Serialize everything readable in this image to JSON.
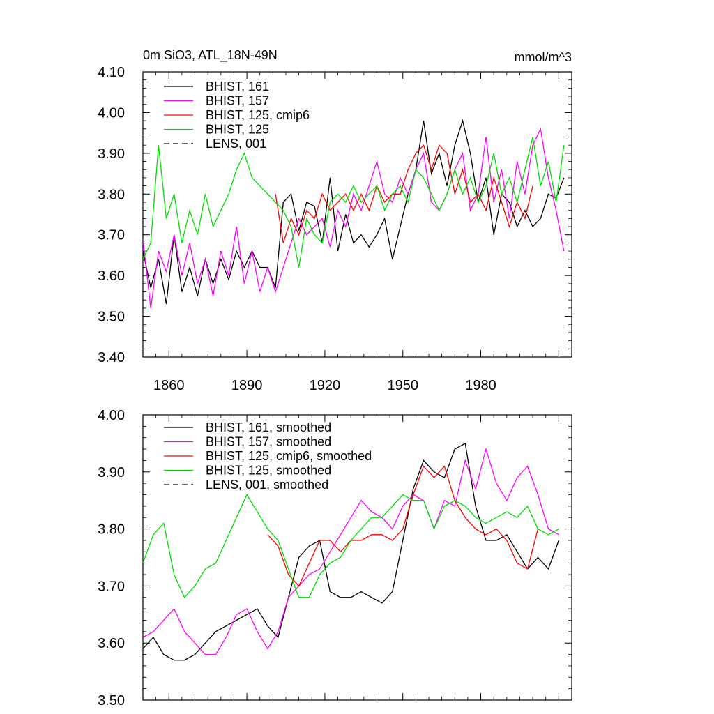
{
  "chart_data": [
    {
      "type": "line",
      "title": "0m SiO3, ATL_18N-49N",
      "units": "mmol/m^3",
      "xlim": [
        1850,
        2015
      ],
      "ylim": [
        3.4,
        4.1
      ],
      "yticks": [
        "3.40",
        "3.50",
        "3.60",
        "3.70",
        "3.80",
        "3.90",
        "4.00",
        "4.10"
      ],
      "xticks": [
        "1860",
        "1890",
        "1920",
        "1950",
        "1980"
      ],
      "legend_position": "top-left",
      "grid": false,
      "series": [
        {
          "name": "BHIST, 161",
          "color": "#000000",
          "dash": "solid",
          "x": [
            1850,
            1853,
            1856,
            1859,
            1862,
            1865,
            1868,
            1871,
            1874,
            1877,
            1880,
            1883,
            1886,
            1889,
            1892,
            1895,
            1898,
            1901,
            1904,
            1907,
            1910,
            1913,
            1916,
            1919,
            1922,
            1925,
            1928,
            1931,
            1934,
            1937,
            1940,
            1943,
            1946,
            1949,
            1952,
            1955,
            1958,
            1961,
            1964,
            1967,
            1970,
            1973,
            1976,
            1979,
            1982,
            1985,
            1988,
            1991,
            1994,
            1997,
            2000,
            2003,
            2006,
            2009,
            2012
          ],
          "y": [
            3.66,
            3.57,
            3.64,
            3.53,
            3.7,
            3.56,
            3.62,
            3.55,
            3.64,
            3.58,
            3.64,
            3.59,
            3.66,
            3.62,
            3.66,
            3.62,
            3.62,
            3.57,
            3.78,
            3.8,
            3.71,
            3.78,
            3.77,
            3.68,
            3.84,
            3.66,
            3.75,
            3.68,
            3.7,
            3.67,
            3.7,
            3.74,
            3.64,
            3.72,
            3.8,
            3.86,
            3.98,
            3.85,
            3.9,
            3.82,
            3.92,
            3.98,
            3.9,
            3.78,
            3.84,
            3.7,
            3.8,
            3.78,
            3.72,
            3.76,
            3.72,
            3.74,
            3.8,
            3.79,
            3.84
          ]
        },
        {
          "name": "BHIST, 157",
          "color": "#ff00ff",
          "dash": "solid",
          "x": [
            1850,
            1853,
            1856,
            1859,
            1862,
            1865,
            1868,
            1871,
            1874,
            1877,
            1880,
            1883,
            1886,
            1889,
            1892,
            1895,
            1898,
            1901,
            1904,
            1907,
            1910,
            1913,
            1916,
            1919,
            1922,
            1925,
            1928,
            1931,
            1934,
            1937,
            1940,
            1943,
            1946,
            1949,
            1952,
            1955,
            1958,
            1961,
            1964,
            1967,
            1970,
            1973,
            1976,
            1979,
            1982,
            1985,
            1988,
            1991,
            1994,
            1997,
            2000,
            2003,
            2006,
            2009,
            2012
          ],
          "y": [
            3.69,
            3.52,
            3.66,
            3.61,
            3.7,
            3.6,
            3.68,
            3.58,
            3.64,
            3.55,
            3.66,
            3.6,
            3.72,
            3.58,
            3.66,
            3.56,
            3.62,
            3.56,
            3.62,
            3.68,
            3.74,
            3.7,
            3.72,
            3.74,
            3.67,
            3.76,
            3.72,
            3.8,
            3.76,
            3.82,
            3.88,
            3.8,
            3.78,
            3.84,
            3.8,
            3.86,
            3.9,
            3.78,
            3.76,
            3.8,
            3.86,
            3.9,
            3.76,
            3.8,
            3.94,
            3.78,
            3.86,
            3.74,
            3.88,
            3.8,
            3.92,
            3.96,
            3.84,
            3.76,
            3.66
          ]
        },
        {
          "name": "BHIST, 125, cmip6",
          "color": "#ff0000",
          "dash": "solid",
          "x": [
            1901,
            1904,
            1907,
            1910,
            1913,
            1916,
            1919,
            1922,
            1925,
            1928,
            1931,
            1934,
            1937,
            1940,
            1943,
            1946,
            1949,
            1952,
            1955,
            1958,
            1961,
            1964,
            1967,
            1970,
            1973,
            1976,
            1979,
            1982,
            1985,
            1988,
            1991,
            1994,
            1997,
            2000
          ],
          "y": [
            3.8,
            3.68,
            3.74,
            3.7,
            3.76,
            3.74,
            3.8,
            3.76,
            3.78,
            3.8,
            3.76,
            3.8,
            3.76,
            3.82,
            3.78,
            3.8,
            3.8,
            3.86,
            3.9,
            3.92,
            3.86,
            3.92,
            3.9,
            3.8,
            3.86,
            3.78,
            3.8,
            3.76,
            3.84,
            3.78,
            3.72,
            3.78,
            3.74,
            3.82
          ]
        },
        {
          "name": "BHIST, 125",
          "color": "#00dd00",
          "dash": "solid",
          "x": [
            1850,
            1853,
            1856,
            1859,
            1862,
            1865,
            1868,
            1871,
            1874,
            1877,
            1880,
            1883,
            1886,
            1889,
            1892,
            1895,
            1898,
            1901,
            1904,
            1907,
            1910,
            1913,
            1916,
            1919,
            1922,
            1925,
            1928,
            1931,
            1934,
            1937,
            1940,
            1943,
            1946,
            1949,
            1952,
            1955,
            1958,
            1961,
            1964,
            1967,
            1970,
            1973,
            1976,
            1979,
            1982,
            1985,
            1988,
            1991,
            1994,
            1997,
            2000,
            2003,
            2006,
            2009,
            2012
          ],
          "y": [
            3.64,
            3.68,
            3.92,
            3.74,
            3.8,
            3.68,
            3.76,
            3.7,
            3.8,
            3.72,
            3.76,
            3.8,
            3.86,
            3.9,
            3.84,
            3.82,
            3.8,
            3.78,
            3.76,
            3.72,
            3.62,
            3.74,
            3.7,
            3.68,
            3.78,
            3.8,
            3.78,
            3.82,
            3.78,
            3.8,
            3.82,
            3.76,
            3.8,
            3.82,
            3.78,
            3.86,
            3.84,
            3.8,
            3.76,
            3.8,
            3.86,
            3.8,
            3.84,
            3.78,
            3.82,
            3.9,
            3.8,
            3.84,
            3.78,
            3.86,
            3.94,
            3.82,
            3.88,
            3.78,
            3.92
          ]
        },
        {
          "name": "LENS, 001",
          "color": "#000000",
          "dash": "dashed",
          "x": [],
          "y": []
        }
      ]
    },
    {
      "type": "line",
      "xlim": [
        1850,
        2015
      ],
      "ylim": [
        3.5,
        4.0
      ],
      "yticks": [
        "3.50",
        "3.60",
        "3.70",
        "3.80",
        "3.90",
        "4.00"
      ],
      "legend_position": "top-left",
      "grid": false,
      "series": [
        {
          "name": "BHIST, 161, smoothed",
          "color": "#000000",
          "dash": "solid",
          "x": [
            1850,
            1854,
            1858,
            1862,
            1866,
            1870,
            1874,
            1878,
            1882,
            1886,
            1890,
            1894,
            1898,
            1902,
            1906,
            1910,
            1914,
            1918,
            1922,
            1926,
            1930,
            1934,
            1938,
            1942,
            1946,
            1950,
            1954,
            1958,
            1962,
            1966,
            1970,
            1974,
            1978,
            1982,
            1986,
            1990,
            1994,
            1998,
            2002,
            2006,
            2010
          ],
          "y": [
            3.59,
            3.61,
            3.58,
            3.57,
            3.57,
            3.58,
            3.6,
            3.62,
            3.63,
            3.64,
            3.65,
            3.66,
            3.63,
            3.61,
            3.68,
            3.75,
            3.77,
            3.78,
            3.69,
            3.68,
            3.68,
            3.69,
            3.68,
            3.67,
            3.69,
            3.78,
            3.87,
            3.92,
            3.9,
            3.89,
            3.94,
            3.95,
            3.84,
            3.78,
            3.78,
            3.79,
            3.76,
            3.73,
            3.75,
            3.73,
            3.78
          ]
        },
        {
          "name": "BHIST, 157, smoothed",
          "color": "#ff00ff",
          "dash": "solid",
          "x": [
            1850,
            1854,
            1858,
            1862,
            1866,
            1870,
            1874,
            1878,
            1882,
            1886,
            1890,
            1894,
            1898,
            1902,
            1906,
            1910,
            1914,
            1918,
            1922,
            1926,
            1930,
            1934,
            1938,
            1942,
            1946,
            1950,
            1954,
            1958,
            1962,
            1966,
            1970,
            1974,
            1978,
            1982,
            1986,
            1990,
            1994,
            1998,
            2002,
            2006,
            2010
          ],
          "y": [
            3.61,
            3.62,
            3.64,
            3.66,
            3.62,
            3.6,
            3.58,
            3.58,
            3.61,
            3.65,
            3.66,
            3.62,
            3.59,
            3.62,
            3.68,
            3.7,
            3.72,
            3.73,
            3.76,
            3.79,
            3.82,
            3.85,
            3.83,
            3.82,
            3.8,
            3.84,
            3.86,
            3.85,
            3.8,
            3.85,
            3.84,
            3.92,
            3.87,
            3.94,
            3.88,
            3.85,
            3.89,
            3.91,
            3.86,
            3.8,
            3.79
          ]
        },
        {
          "name": "BHIST, 125, cmip6, smoothed",
          "color": "#ff0000",
          "dash": "solid",
          "x": [
            1898,
            1902,
            1906,
            1910,
            1914,
            1918,
            1922,
            1926,
            1930,
            1934,
            1938,
            1942,
            1946,
            1950,
            1954,
            1958,
            1962,
            1966,
            1970,
            1974,
            1978,
            1982,
            1986,
            1990,
            1994,
            1998,
            2002
          ],
          "y": [
            3.79,
            3.77,
            3.72,
            3.7,
            3.74,
            3.78,
            3.78,
            3.76,
            3.78,
            3.78,
            3.79,
            3.79,
            3.78,
            3.8,
            3.86,
            3.91,
            3.89,
            3.91,
            3.85,
            3.82,
            3.8,
            3.79,
            3.8,
            3.78,
            3.74,
            3.73,
            3.8
          ]
        },
        {
          "name": "BHIST, 125, smoothed",
          "color": "#00dd00",
          "dash": "solid",
          "x": [
            1850,
            1854,
            1858,
            1862,
            1866,
            1870,
            1874,
            1878,
            1882,
            1886,
            1890,
            1894,
            1898,
            1902,
            1906,
            1910,
            1914,
            1918,
            1922,
            1926,
            1930,
            1934,
            1938,
            1942,
            1946,
            1950,
            1954,
            1958,
            1962,
            1966,
            1970,
            1974,
            1978,
            1982,
            1986,
            1990,
            1994,
            1998,
            2002,
            2006,
            2010
          ],
          "y": [
            3.74,
            3.79,
            3.81,
            3.72,
            3.68,
            3.7,
            3.73,
            3.74,
            3.78,
            3.82,
            3.86,
            3.83,
            3.8,
            3.78,
            3.73,
            3.68,
            3.68,
            3.72,
            3.74,
            3.75,
            3.78,
            3.8,
            3.82,
            3.82,
            3.84,
            3.86,
            3.85,
            3.85,
            3.8,
            3.84,
            3.85,
            3.84,
            3.82,
            3.81,
            3.82,
            3.83,
            3.82,
            3.84,
            3.8,
            3.79,
            3.8
          ]
        },
        {
          "name": "LENS, 001, smoothed",
          "color": "#000000",
          "dash": "dashed",
          "x": [],
          "y": []
        }
      ]
    }
  ]
}
